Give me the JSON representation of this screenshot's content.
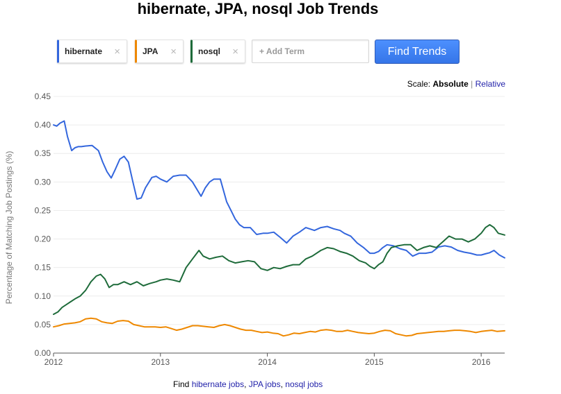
{
  "page": {
    "title": "hibernate, JPA, nosql Job Trends"
  },
  "terms": [
    {
      "label": "hibernate",
      "color": "#3366dd"
    },
    {
      "label": "JPA",
      "color": "#ee8800"
    },
    {
      "label": "nosql",
      "color": "#1e6b3a"
    }
  ],
  "chip_close_glyph": "×",
  "search": {
    "placeholder": "+ Add Term",
    "button_label": "Find Trends"
  },
  "scale": {
    "label": "Scale:",
    "active": "Absolute",
    "separator": "|",
    "other": "Relative"
  },
  "find_links": {
    "prefix": "Find",
    "links": [
      "hibernate jobs",
      "JPA jobs",
      "nosql jobs"
    ],
    "separator": ","
  },
  "chart_data": {
    "type": "line",
    "title": "hibernate, JPA, nosql Job Trends",
    "xlabel": "",
    "ylabel": "Percentage of Matching Job Postings (%)",
    "xlim": [
      2012.0,
      2016.22
    ],
    "ylim": [
      0.0,
      0.45
    ],
    "x_ticks": [
      "2012",
      "2013",
      "2014",
      "2015",
      "2016"
    ],
    "x_tick_values": [
      2012,
      2013,
      2014,
      2015,
      2016
    ],
    "y_ticks": [
      "0.00",
      "0.05",
      "0.10",
      "0.15",
      "0.20",
      "0.25",
      "0.30",
      "0.35",
      "0.40",
      "0.45"
    ],
    "y_tick_values": [
      0.0,
      0.05,
      0.1,
      0.15,
      0.2,
      0.25,
      0.3,
      0.35,
      0.4,
      0.45
    ],
    "grid": true,
    "legend": "none",
    "series": [
      {
        "name": "hibernate",
        "color": "#3366dd",
        "x": [
          2012.0,
          2012.03,
          2012.06,
          2012.1,
          2012.13,
          2012.17,
          2012.2,
          2012.23,
          2012.26,
          2012.3,
          2012.36,
          2012.42,
          2012.46,
          2012.5,
          2012.54,
          2012.58,
          2012.62,
          2012.66,
          2012.7,
          2012.74,
          2012.78,
          2012.82,
          2012.86,
          2012.92,
          2012.96,
          2013.0,
          2013.06,
          2013.12,
          2013.18,
          2013.24,
          2013.3,
          2013.38,
          2013.42,
          2013.46,
          2013.5,
          2013.56,
          2013.62,
          2013.66,
          2013.7,
          2013.74,
          2013.78,
          2013.84,
          2013.9,
          2013.96,
          2014.0,
          2014.06,
          2014.12,
          2014.18,
          2014.24,
          2014.3,
          2014.36,
          2014.44,
          2014.5,
          2014.56,
          2014.62,
          2014.68,
          2014.72,
          2014.78,
          2014.84,
          2014.9,
          2014.96,
          2015.0,
          2015.04,
          2015.08,
          2015.12,
          2015.18,
          2015.24,
          2015.3,
          2015.36,
          2015.42,
          2015.48,
          2015.54,
          2015.6,
          2015.66,
          2015.72,
          2015.78,
          2015.84,
          2015.9,
          2015.96,
          2016.0,
          2016.04,
          2016.08,
          2016.12,
          2016.17,
          2016.22
        ],
        "values": [
          0.4,
          0.398,
          0.403,
          0.407,
          0.38,
          0.355,
          0.36,
          0.362,
          0.362,
          0.363,
          0.364,
          0.355,
          0.335,
          0.318,
          0.307,
          0.323,
          0.34,
          0.345,
          0.335,
          0.302,
          0.27,
          0.272,
          0.29,
          0.308,
          0.31,
          0.305,
          0.3,
          0.31,
          0.312,
          0.312,
          0.3,
          0.275,
          0.29,
          0.3,
          0.305,
          0.305,
          0.265,
          0.25,
          0.235,
          0.225,
          0.22,
          0.22,
          0.208,
          0.21,
          0.21,
          0.212,
          0.203,
          0.193,
          0.205,
          0.212,
          0.22,
          0.215,
          0.22,
          0.222,
          0.218,
          0.215,
          0.21,
          0.205,
          0.193,
          0.185,
          0.175,
          0.175,
          0.178,
          0.185,
          0.19,
          0.188,
          0.183,
          0.18,
          0.17,
          0.175,
          0.175,
          0.177,
          0.186,
          0.188,
          0.186,
          0.18,
          0.177,
          0.175,
          0.172,
          0.172,
          0.174,
          0.176,
          0.18,
          0.172,
          0.167
        ]
      },
      {
        "name": "JPA",
        "color": "#ee8800",
        "x": [
          2012.0,
          2012.05,
          2012.1,
          2012.15,
          2012.2,
          2012.25,
          2012.3,
          2012.35,
          2012.4,
          2012.45,
          2012.5,
          2012.55,
          2012.6,
          2012.65,
          2012.7,
          2012.75,
          2012.8,
          2012.85,
          2012.9,
          2012.95,
          2013.0,
          2013.05,
          2013.1,
          2013.15,
          2013.2,
          2013.25,
          2013.3,
          2013.35,
          2013.4,
          2013.45,
          2013.5,
          2013.55,
          2013.6,
          2013.65,
          2013.7,
          2013.75,
          2013.8,
          2013.85,
          2013.9,
          2013.95,
          2014.0,
          2014.05,
          2014.1,
          2014.15,
          2014.2,
          2014.25,
          2014.3,
          2014.35,
          2014.4,
          2014.45,
          2014.5,
          2014.55,
          2014.6,
          2014.65,
          2014.7,
          2014.75,
          2014.8,
          2014.85,
          2014.9,
          2014.95,
          2015.0,
          2015.05,
          2015.1,
          2015.15,
          2015.2,
          2015.25,
          2015.3,
          2015.35,
          2015.4,
          2015.45,
          2015.5,
          2015.55,
          2015.6,
          2015.65,
          2015.7,
          2015.75,
          2015.8,
          2015.85,
          2015.9,
          2015.95,
          2016.0,
          2016.05,
          2016.1,
          2016.15,
          2016.22
        ],
        "values": [
          0.046,
          0.048,
          0.051,
          0.052,
          0.053,
          0.055,
          0.06,
          0.061,
          0.06,
          0.055,
          0.053,
          0.052,
          0.056,
          0.057,
          0.056,
          0.05,
          0.048,
          0.046,
          0.046,
          0.046,
          0.045,
          0.046,
          0.043,
          0.04,
          0.042,
          0.045,
          0.048,
          0.048,
          0.047,
          0.046,
          0.045,
          0.048,
          0.05,
          0.048,
          0.045,
          0.042,
          0.04,
          0.04,
          0.038,
          0.036,
          0.037,
          0.035,
          0.034,
          0.03,
          0.032,
          0.035,
          0.034,
          0.036,
          0.038,
          0.037,
          0.04,
          0.041,
          0.04,
          0.038,
          0.038,
          0.04,
          0.038,
          0.036,
          0.035,
          0.034,
          0.035,
          0.038,
          0.04,
          0.039,
          0.034,
          0.032,
          0.03,
          0.031,
          0.034,
          0.035,
          0.036,
          0.037,
          0.038,
          0.038,
          0.039,
          0.04,
          0.04,
          0.039,
          0.038,
          0.036,
          0.038,
          0.039,
          0.04,
          0.038,
          0.039
        ]
      },
      {
        "name": "nosql",
        "color": "#1e6b3a",
        "x": [
          2012.0,
          2012.04,
          2012.08,
          2012.12,
          2012.16,
          2012.2,
          2012.25,
          2012.3,
          2012.35,
          2012.4,
          2012.44,
          2012.48,
          2012.52,
          2012.56,
          2012.6,
          2012.66,
          2012.72,
          2012.78,
          2012.84,
          2012.9,
          2012.96,
          2013.0,
          2013.06,
          2013.12,
          2013.18,
          2013.24,
          2013.3,
          2013.36,
          2013.4,
          2013.46,
          2013.52,
          2013.58,
          2013.64,
          2013.7,
          2013.76,
          2013.82,
          2013.88,
          2013.94,
          2014.0,
          2014.06,
          2014.12,
          2014.18,
          2014.24,
          2014.3,
          2014.36,
          2014.42,
          2014.5,
          2014.56,
          2014.62,
          2014.68,
          2014.74,
          2014.8,
          2014.86,
          2014.92,
          2014.96,
          2015.0,
          2015.04,
          2015.08,
          2015.12,
          2015.16,
          2015.22,
          2015.28,
          2015.34,
          2015.4,
          2015.46,
          2015.52,
          2015.58,
          2015.64,
          2015.7,
          2015.76,
          2015.82,
          2015.88,
          2015.94,
          2016.0,
          2016.04,
          2016.08,
          2016.12,
          2016.16,
          2016.22
        ],
        "values": [
          0.068,
          0.072,
          0.08,
          0.085,
          0.09,
          0.095,
          0.1,
          0.11,
          0.125,
          0.135,
          0.138,
          0.13,
          0.115,
          0.12,
          0.12,
          0.125,
          0.12,
          0.125,
          0.118,
          0.122,
          0.125,
          0.128,
          0.13,
          0.128,
          0.125,
          0.15,
          0.165,
          0.18,
          0.17,
          0.165,
          0.168,
          0.17,
          0.162,
          0.158,
          0.16,
          0.162,
          0.16,
          0.148,
          0.145,
          0.15,
          0.148,
          0.152,
          0.155,
          0.155,
          0.165,
          0.17,
          0.18,
          0.185,
          0.183,
          0.178,
          0.175,
          0.17,
          0.162,
          0.158,
          0.152,
          0.148,
          0.155,
          0.16,
          0.175,
          0.185,
          0.188,
          0.19,
          0.19,
          0.18,
          0.185,
          0.188,
          0.185,
          0.195,
          0.205,
          0.2,
          0.2,
          0.195,
          0.2,
          0.21,
          0.22,
          0.225,
          0.22,
          0.21,
          0.207
        ]
      }
    ]
  }
}
